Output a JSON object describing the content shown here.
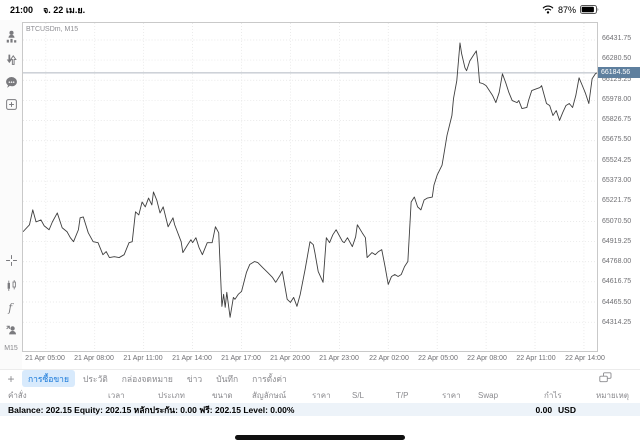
{
  "status_bar": {
    "time": "21:00",
    "date": "จ. 22 เม.ย.",
    "battery_pct": "87%"
  },
  "chart": {
    "symbol_label": "BTCUSDm, M15",
    "timeframe": "M15",
    "current_price_label": "66184.56"
  },
  "colors": {
    "price_box": "#5e7f9e",
    "active_tab_bg": "#d8eafc",
    "accent_blue": "#1678d9",
    "series_line": "#3f3f3f",
    "grid": "#e2e2e2",
    "balance_bar_bg": "#edf3f9"
  },
  "sidebar": {
    "icons": [
      "account-stats-icon",
      "trade-arrows-icon",
      "chat-icon",
      "new-order-icon",
      "crosshair-icon",
      "chart-type-icon",
      "indicator-function-icon",
      "objects-icon"
    ],
    "timeframe_label": "M15"
  },
  "chart_data": {
    "type": "line",
    "title": "BTCUSDm, M15",
    "xlabel": "",
    "ylabel": "",
    "grid": true,
    "legend": "none",
    "xlim": [
      3.6,
      38.8
    ],
    "ylim": [
      64098,
      66559
    ],
    "x_unit": "hours since 21 Apr 00:00",
    "current_price": 66184.56,
    "y_ticks": [
      66431.75,
      66280.5,
      66129.25,
      65978.0,
      65826.75,
      65675.5,
      65524.25,
      65373.0,
      65221.75,
      65070.5,
      64919.25,
      64768.0,
      64616.75,
      64465.5,
      64314.25
    ],
    "x_ticks": [
      {
        "t": 5,
        "label": "21 Apr 05:00"
      },
      {
        "t": 8,
        "label": "21 Apr 08:00"
      },
      {
        "t": 11,
        "label": "21 Apr 11:00"
      },
      {
        "t": 14,
        "label": "21 Apr 14:00"
      },
      {
        "t": 17,
        "label": "21 Apr 17:00"
      },
      {
        "t": 20,
        "label": "21 Apr 20:00"
      },
      {
        "t": 23,
        "label": "21 Apr 23:00"
      },
      {
        "t": 26,
        "label": "22 Apr 02:00"
      },
      {
        "t": 29,
        "label": "22 Apr 05:00"
      },
      {
        "t": 32,
        "label": "22 Apr 08:00"
      },
      {
        "t": 35,
        "label": "22 Apr 11:00"
      },
      {
        "t": 38,
        "label": "22 Apr 14:00"
      }
    ],
    "points": [
      [
        3.6,
        64993
      ],
      [
        4.0,
        65045
      ],
      [
        4.2,
        65157
      ],
      [
        4.4,
        65067
      ],
      [
        4.7,
        65082
      ],
      [
        4.9,
        65037
      ],
      [
        5.2,
        65008
      ],
      [
        5.4,
        65067
      ],
      [
        5.7,
        65134
      ],
      [
        6.0,
        65023
      ],
      [
        6.3,
        64993
      ],
      [
        6.5,
        64948
      ],
      [
        6.7,
        64918
      ],
      [
        7.0,
        65008
      ],
      [
        7.1,
        65097
      ],
      [
        7.3,
        65104
      ],
      [
        7.6,
        64985
      ],
      [
        7.9,
        64918
      ],
      [
        8.2,
        64911
      ],
      [
        8.5,
        64821
      ],
      [
        8.7,
        64844
      ],
      [
        8.9,
        64799
      ],
      [
        9.2,
        64806
      ],
      [
        9.5,
        64799
      ],
      [
        9.8,
        64821
      ],
      [
        10.1,
        64911
      ],
      [
        10.3,
        64918
      ],
      [
        10.5,
        65142
      ],
      [
        10.7,
        65119
      ],
      [
        10.9,
        65216
      ],
      [
        11.1,
        65179
      ],
      [
        11.3,
        65246
      ],
      [
        11.5,
        65194
      ],
      [
        11.6,
        65291
      ],
      [
        11.8,
        65231
      ],
      [
        12.0,
        65134
      ],
      [
        12.2,
        65179
      ],
      [
        12.5,
        65030
      ],
      [
        12.8,
        65097
      ],
      [
        12.9,
        65045
      ],
      [
        13.3,
        64918
      ],
      [
        13.4,
        64836
      ],
      [
        13.7,
        64896
      ],
      [
        13.9,
        64933
      ],
      [
        14.0,
        64911
      ],
      [
        14.2,
        64948
      ],
      [
        14.4,
        64873
      ],
      [
        14.6,
        64821
      ],
      [
        14.9,
        64911
      ],
      [
        15.2,
        64911
      ],
      [
        15.4,
        65030
      ],
      [
        15.6,
        64985
      ],
      [
        15.8,
        64433
      ],
      [
        15.9,
        64523
      ],
      [
        16.0,
        64426
      ],
      [
        16.1,
        64538
      ],
      [
        16.3,
        64351
      ],
      [
        16.5,
        64500
      ],
      [
        16.6,
        64486
      ],
      [
        16.8,
        64523
      ],
      [
        17.0,
        64545
      ],
      [
        17.3,
        64687
      ],
      [
        17.5,
        64747
      ],
      [
        17.8,
        64769
      ],
      [
        18.0,
        64762
      ],
      [
        18.3,
        64724
      ],
      [
        18.6,
        64687
      ],
      [
        18.9,
        64650
      ],
      [
        19.1,
        64613
      ],
      [
        19.4,
        64672
      ],
      [
        19.5,
        64695
      ],
      [
        19.8,
        64486
      ],
      [
        20.0,
        64463
      ],
      [
        20.2,
        64500
      ],
      [
        20.4,
        64433
      ],
      [
        20.6,
        64523
      ],
      [
        20.9,
        64710
      ],
      [
        21.2,
        64918
      ],
      [
        21.4,
        64896
      ],
      [
        21.5,
        64836
      ],
      [
        21.7,
        64695
      ],
      [
        22.0,
        64613
      ],
      [
        22.2,
        64948
      ],
      [
        22.4,
        64911
      ],
      [
        22.6,
        64970
      ],
      [
        22.8,
        65008
      ],
      [
        23.2,
        64918
      ],
      [
        23.3,
        64911
      ],
      [
        23.5,
        64948
      ],
      [
        23.8,
        64881
      ],
      [
        24.0,
        64955
      ],
      [
        24.1,
        65045
      ],
      [
        24.4,
        64985
      ],
      [
        24.6,
        64948
      ],
      [
        24.7,
        64799
      ],
      [
        25.0,
        64836
      ],
      [
        25.2,
        64821
      ],
      [
        25.4,
        64844
      ],
      [
        25.6,
        64859
      ],
      [
        25.8,
        64732
      ],
      [
        26.0,
        64598
      ],
      [
        26.2,
        64657
      ],
      [
        26.4,
        64672
      ],
      [
        26.6,
        64657
      ],
      [
        26.8,
        64672
      ],
      [
        27.0,
        64732
      ],
      [
        27.2,
        64769
      ],
      [
        27.4,
        65216
      ],
      [
        27.6,
        65253
      ],
      [
        27.8,
        65179
      ],
      [
        28.0,
        65157
      ],
      [
        28.2,
        65231
      ],
      [
        28.4,
        65246
      ],
      [
        28.7,
        65253
      ],
      [
        28.8,
        65343
      ],
      [
        29.0,
        65418
      ],
      [
        29.3,
        65492
      ],
      [
        29.4,
        65567
      ],
      [
        29.6,
        65716
      ],
      [
        29.9,
        65865
      ],
      [
        30.0,
        65992
      ],
      [
        30.2,
        66126
      ],
      [
        30.4,
        66409
      ],
      [
        30.5,
        66327
      ],
      [
        30.7,
        66223
      ],
      [
        30.8,
        66201
      ],
      [
        31.0,
        66275
      ],
      [
        31.2,
        66312
      ],
      [
        31.4,
        66350
      ],
      [
        31.5,
        66260
      ],
      [
        31.6,
        66111
      ],
      [
        31.8,
        66104
      ],
      [
        32.0,
        66089
      ],
      [
        32.2,
        66052
      ],
      [
        32.4,
        66014
      ],
      [
        32.6,
        65962
      ],
      [
        32.8,
        66037
      ],
      [
        33.0,
        66178
      ],
      [
        33.2,
        66111
      ],
      [
        33.4,
        66037
      ],
      [
        33.6,
        65977
      ],
      [
        33.9,
        65962
      ],
      [
        34.0,
        65977
      ],
      [
        34.2,
        65917
      ],
      [
        34.5,
        65925
      ],
      [
        34.6,
        65977
      ],
      [
        34.8,
        66052
      ],
      [
        35.1,
        66066
      ],
      [
        35.3,
        66074
      ],
      [
        35.4,
        66089
      ],
      [
        35.7,
        65955
      ],
      [
        35.9,
        65940
      ],
      [
        36.1,
        65865
      ],
      [
        36.3,
        65902
      ],
      [
        36.5,
        65828
      ],
      [
        36.7,
        65887
      ],
      [
        36.9,
        65940
      ],
      [
        37.1,
        65955
      ],
      [
        37.3,
        65925
      ],
      [
        37.5,
        66014
      ],
      [
        37.7,
        66148
      ],
      [
        37.9,
        66089
      ],
      [
        38.1,
        66030
      ],
      [
        38.3,
        65955
      ],
      [
        38.5,
        66141
      ],
      [
        38.7,
        66178
      ],
      [
        38.8,
        66184.56
      ]
    ]
  },
  "bottom_tabs": {
    "plus": "+",
    "items": [
      {
        "label": "การซื้อขาย",
        "active": true
      },
      {
        "label": "ประวัติ",
        "active": false
      },
      {
        "label": "กล่องจดหมาย",
        "active": false
      },
      {
        "label": "ข่าว",
        "active": false
      },
      {
        "label": "บันทึก",
        "active": false
      },
      {
        "label": "การตั้งค่า",
        "active": false
      }
    ]
  },
  "orders_table": {
    "columns": [
      "คำสั่ง",
      "เวลา",
      "ประเภท",
      "ขนาด",
      "สัญลักษณ์",
      "ราคา",
      "S/L",
      "T/P",
      "ราคา",
      "Swap",
      "กำไร",
      "หมายเหตุ"
    ]
  },
  "account_bar": {
    "summary": "Balance: 202.15 Equity: 202.15 หลักประกัน: 0.00 ฟรี: 202.15 Level: 0.00%",
    "profit_value": "0.00",
    "profit_currency": "USD"
  }
}
